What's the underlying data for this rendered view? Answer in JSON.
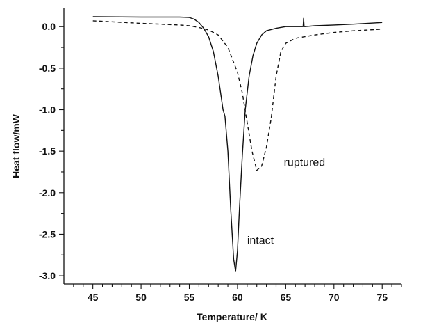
{
  "chart_data": {
    "type": "line",
    "xlabel": "Temperature/ K",
    "ylabel": "Heat flow/mW",
    "xlim": [
      42,
      77
    ],
    "ylim": [
      -3.1,
      0.22
    ],
    "xticks": [
      45,
      50,
      55,
      60,
      65,
      70,
      75
    ],
    "yticks": [
      0.0,
      -0.5,
      -1.0,
      -1.5,
      -2.0,
      -2.5,
      -3.0
    ],
    "xtick_labels": [
      "45",
      "50",
      "55",
      "60",
      "65",
      "70",
      "75"
    ],
    "ytick_labels": [
      "0.0",
      "-0.5",
      "-1.0",
      "-1.5",
      "-2.0",
      "-2.5",
      "-3.0"
    ],
    "grid": false,
    "series": [
      {
        "name": "intact",
        "style": "solid",
        "color": "#111111",
        "x": [
          45,
          50,
          54,
          55,
          55.5,
          56,
          56.5,
          57,
          57.5,
          58,
          58.5,
          58.7,
          59,
          59.3,
          59.6,
          59.8,
          60,
          60.2,
          60.5,
          60.8,
          61.2,
          61.6,
          62,
          62.5,
          63,
          64,
          65,
          66,
          66.8,
          66.85,
          66.9,
          67,
          68,
          70,
          72,
          75
        ],
        "y": [
          0.12,
          0.115,
          0.115,
          0.11,
          0.09,
          0.05,
          -0.02,
          -0.12,
          -0.3,
          -0.6,
          -1.0,
          -1.08,
          -1.5,
          -2.2,
          -2.8,
          -2.95,
          -2.7,
          -2.2,
          -1.55,
          -1.0,
          -0.6,
          -0.35,
          -0.2,
          -0.1,
          -0.05,
          -0.02,
          0.0,
          0.0,
          0.0,
          0.1,
          0.0,
          0.0,
          0.01,
          0.02,
          0.03,
          0.05
        ]
      },
      {
        "name": "ruptured",
        "style": "dashed",
        "color": "#111111",
        "x": [
          45,
          50,
          54,
          55,
          56,
          57,
          58,
          59,
          60,
          60.5,
          61,
          61.5,
          62,
          62.5,
          63,
          63.5,
          64,
          64.5,
          65,
          66,
          68,
          70,
          72,
          75
        ],
        "y": [
          0.07,
          0.04,
          0.02,
          0.01,
          -0.01,
          -0.04,
          -0.1,
          -0.25,
          -0.55,
          -0.8,
          -1.15,
          -1.5,
          -1.73,
          -1.68,
          -1.45,
          -1.1,
          -0.6,
          -0.3,
          -0.2,
          -0.14,
          -0.1,
          -0.07,
          -0.05,
          -0.03
        ]
      }
    ],
    "annotations": [
      {
        "text": "ruptured",
        "x": 64.8,
        "y": -1.68
      },
      {
        "text": "intact",
        "x": 61.0,
        "y": -2.62
      }
    ]
  }
}
